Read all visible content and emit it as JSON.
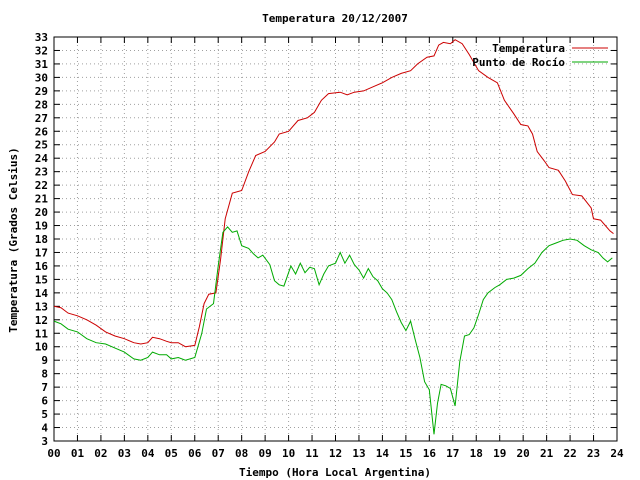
{
  "chart_data": {
    "type": "line",
    "title": "Temperatura 20/12/2007",
    "xlabel": "Tiempo (Hora Local Argentina)",
    "ylabel": "Temperatura (Grados Celsius)",
    "xlim": [
      0,
      24
    ],
    "ylim": [
      3,
      33
    ],
    "grid": true,
    "legend_position": "top-right",
    "x_ticks": [
      "00",
      "01",
      "02",
      "03",
      "04",
      "05",
      "06",
      "07",
      "08",
      "09",
      "10",
      "11",
      "12",
      "13",
      "14",
      "15",
      "16",
      "17",
      "18",
      "19",
      "20",
      "21",
      "22",
      "23",
      "24"
    ],
    "y_ticks": [
      "3",
      "4",
      "5",
      "6",
      "7",
      "8",
      "9",
      "10",
      "11",
      "12",
      "13",
      "14",
      "15",
      "16",
      "17",
      "18",
      "19",
      "20",
      "21",
      "22",
      "23",
      "24",
      "25",
      "26",
      "27",
      "28",
      "29",
      "30",
      "31",
      "32",
      "33"
    ],
    "series": [
      {
        "name": "Temperatura",
        "color": "#cc0000",
        "points": [
          [
            0.0,
            13.0
          ],
          [
            0.3,
            12.9
          ],
          [
            0.6,
            12.5
          ],
          [
            1.0,
            12.3
          ],
          [
            1.4,
            12.0
          ],
          [
            1.8,
            11.6
          ],
          [
            2.2,
            11.1
          ],
          [
            2.6,
            10.8
          ],
          [
            3.0,
            10.6
          ],
          [
            3.4,
            10.3
          ],
          [
            3.7,
            10.2
          ],
          [
            4.0,
            10.3
          ],
          [
            4.2,
            10.7
          ],
          [
            4.5,
            10.6
          ],
          [
            4.8,
            10.4
          ],
          [
            5.0,
            10.3
          ],
          [
            5.3,
            10.3
          ],
          [
            5.6,
            10.0
          ],
          [
            6.0,
            10.1
          ],
          [
            6.2,
            11.5
          ],
          [
            6.4,
            13.2
          ],
          [
            6.6,
            13.9
          ],
          [
            6.9,
            14.0
          ],
          [
            7.1,
            16.5
          ],
          [
            7.3,
            19.5
          ],
          [
            7.6,
            21.4
          ],
          [
            8.0,
            21.6
          ],
          [
            8.3,
            23.0
          ],
          [
            8.6,
            24.2
          ],
          [
            9.0,
            24.5
          ],
          [
            9.4,
            25.2
          ],
          [
            9.6,
            25.8
          ],
          [
            10.0,
            26.0
          ],
          [
            10.4,
            26.8
          ],
          [
            10.8,
            27.0
          ],
          [
            11.1,
            27.4
          ],
          [
            11.4,
            28.3
          ],
          [
            11.7,
            28.8
          ],
          [
            12.2,
            28.9
          ],
          [
            12.5,
            28.7
          ],
          [
            12.8,
            28.9
          ],
          [
            13.2,
            29.0
          ],
          [
            13.6,
            29.3
          ],
          [
            14.0,
            29.6
          ],
          [
            14.4,
            30.0
          ],
          [
            14.8,
            30.3
          ],
          [
            15.2,
            30.5
          ],
          [
            15.5,
            31.0
          ],
          [
            15.9,
            31.5
          ],
          [
            16.2,
            31.6
          ],
          [
            16.4,
            32.4
          ],
          [
            16.6,
            32.6
          ],
          [
            16.9,
            32.5
          ],
          [
            17.1,
            32.8
          ],
          [
            17.4,
            32.5
          ],
          [
            17.7,
            31.7
          ],
          [
            18.1,
            30.5
          ],
          [
            18.5,
            30.0
          ],
          [
            18.9,
            29.6
          ],
          [
            19.2,
            28.3
          ],
          [
            19.6,
            27.3
          ],
          [
            19.9,
            26.5
          ],
          [
            20.2,
            26.4
          ],
          [
            20.4,
            25.8
          ],
          [
            20.6,
            24.5
          ],
          [
            20.9,
            23.8
          ],
          [
            21.1,
            23.3
          ],
          [
            21.5,
            23.1
          ],
          [
            21.8,
            22.3
          ],
          [
            22.1,
            21.3
          ],
          [
            22.5,
            21.2
          ],
          [
            22.9,
            20.3
          ],
          [
            23.0,
            19.5
          ],
          [
            23.3,
            19.4
          ],
          [
            23.5,
            19.0
          ],
          [
            23.7,
            18.6
          ],
          [
            23.85,
            18.4
          ]
        ]
      },
      {
        "name": "Punto de Rocío",
        "color": "#00aa00",
        "points": [
          [
            0.0,
            11.9
          ],
          [
            0.3,
            11.7
          ],
          [
            0.6,
            11.3
          ],
          [
            1.0,
            11.1
          ],
          [
            1.4,
            10.6
          ],
          [
            1.8,
            10.3
          ],
          [
            2.2,
            10.2
          ],
          [
            2.6,
            9.9
          ],
          [
            3.0,
            9.6
          ],
          [
            3.4,
            9.1
          ],
          [
            3.7,
            9.0
          ],
          [
            4.0,
            9.2
          ],
          [
            4.2,
            9.6
          ],
          [
            4.5,
            9.4
          ],
          [
            4.8,
            9.4
          ],
          [
            5.0,
            9.1
          ],
          [
            5.3,
            9.2
          ],
          [
            5.6,
            9.0
          ],
          [
            6.0,
            9.2
          ],
          [
            6.3,
            11.0
          ],
          [
            6.5,
            12.8
          ],
          [
            6.8,
            13.2
          ],
          [
            7.0,
            16.0
          ],
          [
            7.2,
            18.5
          ],
          [
            7.4,
            18.9
          ],
          [
            7.6,
            18.5
          ],
          [
            7.8,
            18.6
          ],
          [
            8.0,
            17.5
          ],
          [
            8.3,
            17.3
          ],
          [
            8.5,
            16.9
          ],
          [
            8.7,
            16.6
          ],
          [
            8.9,
            16.8
          ],
          [
            9.2,
            16.1
          ],
          [
            9.4,
            14.9
          ],
          [
            9.6,
            14.6
          ],
          [
            9.8,
            14.5
          ],
          [
            10.1,
            16.0
          ],
          [
            10.3,
            15.4
          ],
          [
            10.5,
            16.2
          ],
          [
            10.7,
            15.5
          ],
          [
            10.9,
            15.9
          ],
          [
            11.1,
            15.8
          ],
          [
            11.3,
            14.6
          ],
          [
            11.5,
            15.4
          ],
          [
            11.7,
            16.0
          ],
          [
            12.0,
            16.2
          ],
          [
            12.2,
            17.0
          ],
          [
            12.4,
            16.2
          ],
          [
            12.6,
            16.8
          ],
          [
            12.8,
            16.1
          ],
          [
            13.0,
            15.7
          ],
          [
            13.2,
            15.1
          ],
          [
            13.4,
            15.8
          ],
          [
            13.6,
            15.2
          ],
          [
            13.8,
            14.9
          ],
          [
            14.0,
            14.3
          ],
          [
            14.2,
            14.0
          ],
          [
            14.4,
            13.5
          ],
          [
            14.6,
            12.6
          ],
          [
            14.8,
            11.8
          ],
          [
            15.0,
            11.2
          ],
          [
            15.2,
            11.9
          ],
          [
            15.4,
            10.5
          ],
          [
            15.6,
            9.2
          ],
          [
            15.8,
            7.4
          ],
          [
            16.0,
            6.8
          ],
          [
            16.2,
            3.5
          ],
          [
            16.35,
            5.8
          ],
          [
            16.5,
            7.2
          ],
          [
            16.7,
            7.1
          ],
          [
            16.9,
            6.9
          ],
          [
            17.1,
            5.6
          ],
          [
            17.3,
            8.9
          ],
          [
            17.5,
            10.8
          ],
          [
            17.7,
            10.9
          ],
          [
            17.9,
            11.4
          ],
          [
            18.1,
            12.4
          ],
          [
            18.3,
            13.5
          ],
          [
            18.5,
            14.0
          ],
          [
            18.8,
            14.4
          ],
          [
            19.0,
            14.6
          ],
          [
            19.3,
            15.0
          ],
          [
            19.6,
            15.1
          ],
          [
            19.9,
            15.3
          ],
          [
            20.2,
            15.8
          ],
          [
            20.5,
            16.2
          ],
          [
            20.8,
            17.0
          ],
          [
            21.1,
            17.5
          ],
          [
            21.4,
            17.7
          ],
          [
            21.7,
            17.9
          ],
          [
            22.0,
            18.0
          ],
          [
            22.3,
            17.9
          ],
          [
            22.6,
            17.5
          ],
          [
            22.9,
            17.2
          ],
          [
            23.2,
            17.0
          ],
          [
            23.4,
            16.6
          ],
          [
            23.6,
            16.3
          ],
          [
            23.8,
            16.6
          ]
        ]
      }
    ]
  }
}
